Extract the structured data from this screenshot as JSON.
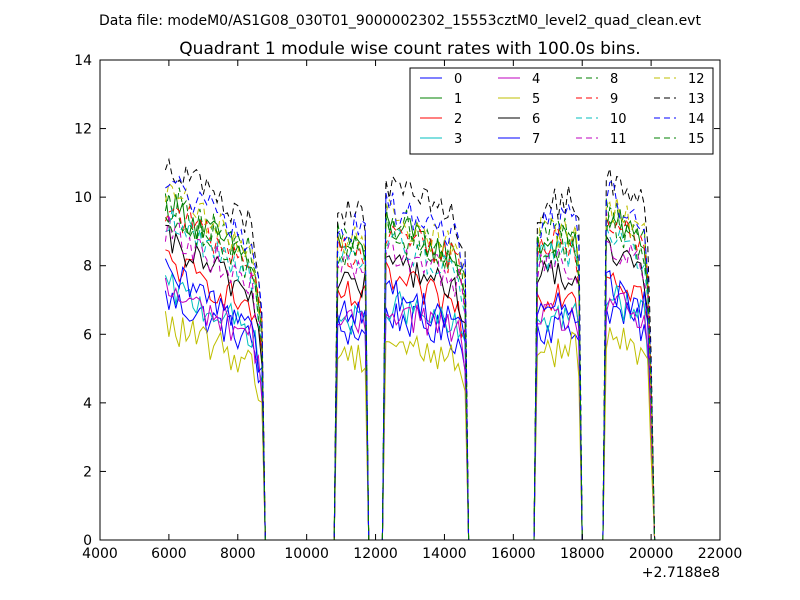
{
  "header": {
    "data_file": "Data file: modeM0/AS1G08_030T01_9000002302_15553cztM0_level2_quad_clean.evt"
  },
  "chart_data": {
    "type": "line",
    "title": "Quadrant 1 module wise count rates with 100.0s bins.",
    "xlabel": "",
    "ylabel": "",
    "x_offset_label": "+2.7188e8",
    "xlim": [
      4000,
      22000
    ],
    "ylim": [
      0,
      14
    ],
    "x_ticks": [
      4000,
      6000,
      8000,
      10000,
      12000,
      14000,
      16000,
      18000,
      20000,
      22000
    ],
    "y_ticks": [
      0,
      2,
      4,
      6,
      8,
      10,
      12,
      14
    ],
    "grid": false,
    "legend": {
      "placement": "top-right",
      "columns": 4
    },
    "segments": [
      {
        "start": 5900,
        "end": 8700,
        "y_start": 1.12,
        "y_end": 0.9,
        "tail_drop": 0.2
      },
      {
        "start": 10900,
        "end": 11700,
        "y_start": 0.98,
        "y_end": 0.95,
        "tail_drop": 0
      },
      {
        "start": 12300,
        "end": 14600,
        "y_start": 1.05,
        "y_end": 0.92,
        "tail_drop": 0.1
      },
      {
        "start": 16700,
        "end": 17900,
        "y_start": 0.98,
        "y_end": 1.0,
        "tail_drop": 0.1
      },
      {
        "start": 18700,
        "end": 20000,
        "y_start": 1.08,
        "y_end": 0.96,
        "tail_drop": 0.45
      }
    ],
    "x_range_data": {
      "start": 5900,
      "end": 20100,
      "step": 100
    },
    "series": [
      {
        "name": "0",
        "color": "#0000ff",
        "style": "solid",
        "base": 6.3
      },
      {
        "name": "1",
        "color": "#008000",
        "style": "solid",
        "base": 8.8
      },
      {
        "name": "2",
        "color": "#ff0000",
        "style": "solid",
        "base": 7.3
      },
      {
        "name": "3",
        "color": "#00bfbf",
        "style": "solid",
        "base": 6.6
      },
      {
        "name": "4",
        "color": "#bf00bf",
        "style": "solid",
        "base": 6.5
      },
      {
        "name": "5",
        "color": "#bfbf00",
        "style": "solid",
        "base": 5.6
      },
      {
        "name": "6",
        "color": "#000000",
        "style": "solid",
        "base": 7.8
      },
      {
        "name": "7",
        "color": "#0000ff",
        "style": "solid",
        "base": 6.9
      },
      {
        "name": "8",
        "color": "#008000",
        "style": "dashed",
        "base": 9.0
      },
      {
        "name": "9",
        "color": "#ff0000",
        "style": "dashed",
        "base": 8.7
      },
      {
        "name": "10",
        "color": "#00bfbf",
        "style": "dashed",
        "base": 8.4
      },
      {
        "name": "11",
        "color": "#bf00bf",
        "style": "dashed",
        "base": 8.1
      },
      {
        "name": "12",
        "color": "#bfbf00",
        "style": "dashed",
        "base": 9.1
      },
      {
        "name": "13",
        "color": "#000000",
        "style": "dashed",
        "base": 9.9
      },
      {
        "name": "14",
        "color": "#0000ff",
        "style": "dashed",
        "base": 9.4
      },
      {
        "name": "15",
        "color": "#008000",
        "style": "dashed",
        "base": 8.6
      }
    ]
  }
}
